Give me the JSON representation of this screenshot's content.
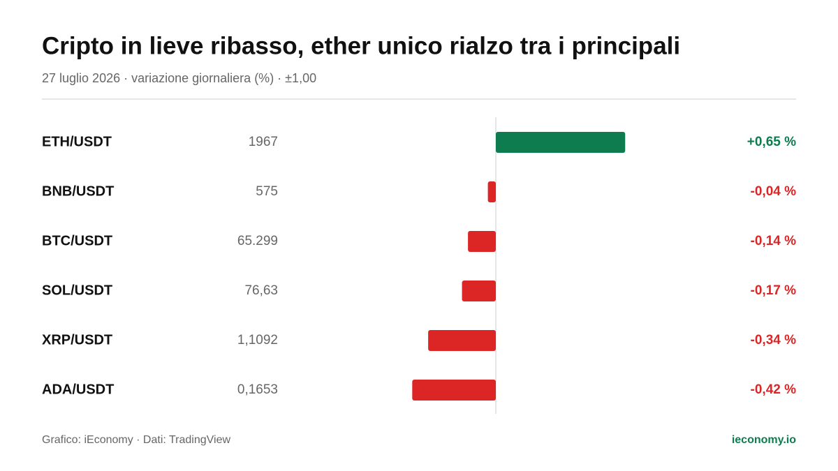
{
  "chart_data": {
    "type": "diverging-bar",
    "title": "Cripto in lieve ribasso, ether unico rialzo tra i principali",
    "subtitle": "27 luglio 2026 · variazione giornaliera (%) · ±1,00",
    "categories": [
      "ETH/USDT",
      "BNB/USDT",
      "BTC/USDT",
      "SOL/USDT",
      "XRP/USDT",
      "ADA/USDT"
    ],
    "prices": [
      "1967",
      "575",
      "65.299",
      "76,63",
      "1,1092",
      "0,1653"
    ],
    "values": [
      0.65,
      -0.04,
      -0.14,
      -0.17,
      -0.34,
      -0.42
    ],
    "value_labels": [
      "+0,65 %",
      "-0,04 %",
      "-0,14 %",
      "-0,17 %",
      "-0,34 %",
      "-0,42 %"
    ],
    "xlim": [
      -1,
      1
    ],
    "positive_color": "#0e7c4f",
    "negative_color": "#dc2626",
    "source": "Grafico: iEconomy · Dati: TradingView",
    "brand": "ieconomy.io"
  }
}
